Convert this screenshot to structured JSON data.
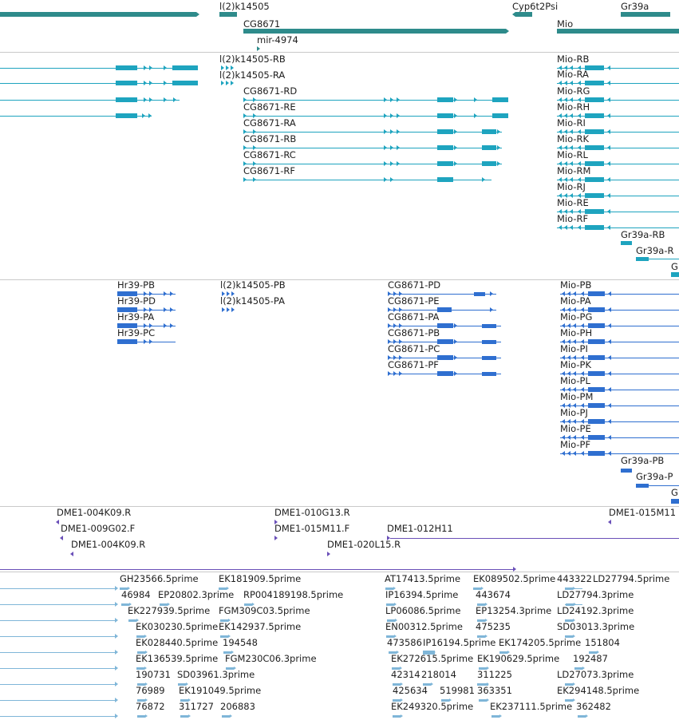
{
  "colors": {
    "gene": "#2e8b8b",
    "transcript": "#1ea4bf",
    "protein": "#2f6fd0",
    "clone": "#6a4fb8",
    "est": "#7fb6d8",
    "divider": "#c9c9c9"
  },
  "tracks": {
    "genes": {
      "labels": [
        "l(2)k14505",
        "Cyp6t2Psi",
        "Gr39a",
        "CG8671",
        "Mio",
        "mir-4974"
      ]
    },
    "transcripts": {
      "labels": [
        "l(2)k14505-RB",
        "l(2)k14505-RA",
        "CG8671-RD",
        "CG8671-RE",
        "CG8671-RA",
        "CG8671-RB",
        "CG8671-RC",
        "CG8671-RF",
        "Mio-RB",
        "Mio-RA",
        "Mio-RG",
        "Mio-RH",
        "Mio-RI",
        "Mio-RK",
        "Mio-RL",
        "Mio-RM",
        "Mio-RJ",
        "Mio-RE",
        "Mio-RF",
        "Gr39a-RB",
        "Gr39a-R",
        "G"
      ]
    },
    "proteins": {
      "labels": [
        "Hr39-PB",
        "Hr39-PD",
        "Hr39-PA",
        "Hr39-PC",
        "l(2)k14505-PB",
        "l(2)k14505-PA",
        "CG8671-PD",
        "CG8671-PE",
        "CG8671-PA",
        "CG8671-PB",
        "CG8671-PC",
        "CG8671-PF",
        "Mio-PB",
        "Mio-PA",
        "Mio-PG",
        "Mio-PH",
        "Mio-PI",
        "Mio-PK",
        "Mio-PL",
        "Mio-PM",
        "Mio-PJ",
        "Mio-PE",
        "Mio-PF",
        "Gr39a-PB",
        "Gr39a-P",
        "G"
      ]
    },
    "clones": {
      "labels": [
        "DME1-004K09.R",
        "DME1-009G02.F",
        "DME1-004K09.R",
        "DME1-010G13.R",
        "DME1-015M11.F",
        "DME1-020L15.R",
        "DME1-012H11",
        "DME1-015M11"
      ]
    },
    "ests": {
      "labels": [
        "GH23566.5prime",
        "EK181909.5prime",
        "AT17413.5prime",
        "EK089502.5prime",
        "443322",
        "LD27794.5prime",
        "46984",
        "EP20802.3prime",
        "RP004189198.5prime",
        "IP16394.5prime",
        "443674",
        "LD27794.3prime",
        "EK227939.5prime",
        "FGM309C03.5prime",
        "LP06086.5prime",
        "EP13254.3prime",
        "LD24192.3prime",
        "EK030230.5prime",
        "EK142937.5prime",
        "EN00312.5prime",
        "475235",
        "SD03013.3prime",
        "EK028440.5prime",
        "194548",
        "473586",
        "IP16194.5prime",
        "EK174205.5prime",
        "151804",
        "EK136539.5prime",
        "FGM230C06.3prime",
        "EK272615.5prime",
        "EK190629.5prime",
        "192487",
        "190731",
        "SD03961.3prime",
        "42314",
        "218014",
        "311225",
        "LD27073.3prime",
        "76989",
        "EK191049.5prime",
        "425634",
        "519981",
        "363351",
        "EK294148.5prime",
        "76872",
        "311727",
        "206883",
        "EK249320.5prime",
        "EK237111.5prime",
        "362482"
      ]
    }
  }
}
